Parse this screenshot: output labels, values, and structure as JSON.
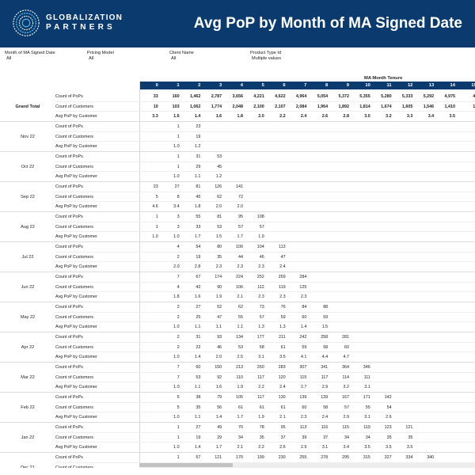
{
  "header": {
    "logo_line1": "GLOBALIZATION",
    "logo_line2": "PARTNERS",
    "title": "Avg PoP by Month of MA Signed Date"
  },
  "filters": [
    {
      "label": "Month of MA Signed Date",
      "value": "All"
    },
    {
      "label": "Pricing Model",
      "value": "All"
    },
    {
      "label": "Client Name",
      "value": "All"
    },
    {
      "label": "Product Type Id",
      "value": "Multiple values"
    }
  ],
  "table": {
    "column_group_label": "MA Month Tenure",
    "columns": [
      "0",
      "1",
      "2",
      "3",
      "4",
      "5",
      "6",
      "7",
      "8",
      "9",
      "10",
      "11",
      "12",
      "13",
      "14",
      "15"
    ],
    "metric_labels": [
      "Count of PoPs",
      "Count of Customers",
      "Avg PoP by Customer"
    ],
    "groups": [
      {
        "label": "Grand Total",
        "grand": true,
        "rows": [
          [
            "33",
            "160",
            "1,462",
            "2,787",
            "3,656",
            "4,221",
            "4,622",
            "4,964",
            "5,054",
            "5,372",
            "5,355",
            "5,280",
            "5,333",
            "5,292",
            "4,975",
            "4,"
          ],
          [
            "10",
            "103",
            "1,062",
            "1,774",
            "2,048",
            "2,100",
            "2,107",
            "2,084",
            "1,964",
            "1,892",
            "1,814",
            "1,674",
            "1,605",
            "1,546",
            "1,410",
            "1,"
          ],
          [
            "3.3",
            "1.6",
            "1.4",
            "1.6",
            "1.8",
            "2.0",
            "2.2",
            "2.4",
            "2.6",
            "2.8",
            "3.0",
            "3.2",
            "3.3",
            "3.4",
            "3.5",
            ""
          ]
        ]
      },
      {
        "label": "Nov 22",
        "rows": [
          [
            "",
            "1",
            "23",
            "",
            "",
            "",
            "",
            "",
            "",
            "",
            "",
            "",
            "",
            "",
            "",
            ""
          ],
          [
            "",
            "1",
            "19",
            "",
            "",
            "",
            "",
            "",
            "",
            "",
            "",
            "",
            "",
            "",
            "",
            ""
          ],
          [
            "",
            "1.0",
            "1.2",
            "",
            "",
            "",
            "",
            "",
            "",
            "",
            "",
            "",
            "",
            "",
            "",
            ""
          ]
        ]
      },
      {
        "label": "Oct 22",
        "rows": [
          [
            "",
            "1",
            "31",
            "53",
            "",
            "",
            "",
            "",
            "",
            "",
            "",
            "",
            "",
            "",
            "",
            ""
          ],
          [
            "",
            "1",
            "29",
            "45",
            "",
            "",
            "",
            "",
            "",
            "",
            "",
            "",
            "",
            "",
            "",
            ""
          ],
          [
            "",
            "1.0",
            "1.1",
            "1.2",
            "",
            "",
            "",
            "",
            "",
            "",
            "",
            "",
            "",
            "",
            "",
            ""
          ]
        ]
      },
      {
        "label": "Sep 22",
        "rows": [
          [
            "23",
            "27",
            "81",
            "126",
            "141",
            "",
            "",
            "",
            "",
            "",
            "",
            "",
            "",
            "",
            "",
            ""
          ],
          [
            "5",
            "8",
            "45",
            "62",
            "72",
            "",
            "",
            "",
            "",
            "",
            "",
            "",
            "",
            "",
            "",
            ""
          ],
          [
            "4.6",
            "3.4",
            "1.8",
            "2.0",
            "2.0",
            "",
            "",
            "",
            "",
            "",
            "",
            "",
            "",
            "",
            "",
            ""
          ]
        ]
      },
      {
        "label": "Aug 22",
        "rows": [
          [
            "1",
            "3",
            "55",
            "81",
            "95",
            "108",
            "",
            "",
            "",
            "",
            "",
            "",
            "",
            "",
            "",
            ""
          ],
          [
            "1",
            "3",
            "33",
            "53",
            "57",
            "57",
            "",
            "",
            "",
            "",
            "",
            "",
            "",
            "",
            "",
            ""
          ],
          [
            "1.0",
            "1.0",
            "1.7",
            "1.5",
            "1.7",
            "1.9",
            "",
            "",
            "",
            "",
            "",
            "",
            "",
            "",
            "",
            ""
          ]
        ]
      },
      {
        "label": "Jul 22",
        "rows": [
          [
            "",
            "4",
            "54",
            "80",
            "100",
            "104",
            "113",
            "",
            "",
            "",
            "",
            "",
            "",
            "",
            "",
            ""
          ],
          [
            "",
            "2",
            "19",
            "35",
            "44",
            "46",
            "47",
            "",
            "",
            "",
            "",
            "",
            "",
            "",
            "",
            ""
          ],
          [
            "",
            "2.0",
            "2.8",
            "2.3",
            "2.3",
            "2.3",
            "2.4",
            "",
            "",
            "",
            "",
            "",
            "",
            "",
            "",
            ""
          ]
        ]
      },
      {
        "label": "Jun 22",
        "rows": [
          [
            "",
            "7",
            "67",
            "174",
            "224",
            "252",
            "269",
            "284",
            "",
            "",
            "",
            "",
            "",
            "",
            "",
            ""
          ],
          [
            "",
            "4",
            "42",
            "90",
            "106",
            "112",
            "119",
            "125",
            "",
            "",
            "",
            "",
            "",
            "",
            "",
            ""
          ],
          [
            "",
            "1.8",
            "1.6",
            "1.9",
            "2.1",
            "2.3",
            "2.3",
            "2.3",
            "",
            "",
            "",
            "",
            "",
            "",
            "",
            ""
          ]
        ]
      },
      {
        "label": "May 22",
        "rows": [
          [
            "",
            "2",
            "27",
            "52",
            "62",
            "73",
            "76",
            "84",
            "88",
            "",
            "",
            "",
            "",
            "",
            "",
            ""
          ],
          [
            "",
            "2",
            "25",
            "47",
            "55",
            "57",
            "59",
            "60",
            "59",
            "",
            "",
            "",
            "",
            "",
            "",
            ""
          ],
          [
            "",
            "1.0",
            "1.1",
            "1.1",
            "1.1",
            "1.3",
            "1.3",
            "1.4",
            "1.5",
            "",
            "",
            "",
            "",
            "",
            "",
            ""
          ]
        ]
      },
      {
        "label": "Apr 22",
        "rows": [
          [
            "",
            "2",
            "31",
            "93",
            "134",
            "177",
            "211",
            "242",
            "258",
            "281",
            "",
            "",
            "",
            "",
            "",
            ""
          ],
          [
            "",
            "2",
            "22",
            "46",
            "53",
            "58",
            "61",
            "59",
            "58",
            "60",
            "",
            "",
            "",
            "",
            "",
            ""
          ],
          [
            "",
            "1.0",
            "1.4",
            "2.0",
            "2.5",
            "3.1",
            "3.5",
            "4.1",
            "4.4",
            "4.7",
            "",
            "",
            "",
            "",
            "",
            ""
          ]
        ]
      },
      {
        "label": "Mar 22",
        "rows": [
          [
            "",
            "7",
            "60",
            "150",
            "213",
            "260",
            "283",
            "307",
            "341",
            "364",
            "346",
            "",
            "",
            "",
            "",
            ""
          ],
          [
            "",
            "7",
            "53",
            "92",
            "110",
            "117",
            "120",
            "115",
            "117",
            "114",
            "111",
            "",
            "",
            "",
            "",
            ""
          ],
          [
            "",
            "1.0",
            "1.1",
            "1.6",
            "1.9",
            "2.2",
            "2.4",
            "2.7",
            "2.9",
            "3.2",
            "3.1",
            "",
            "",
            "",
            "",
            ""
          ]
        ]
      },
      {
        "label": "Feb 22",
        "rows": [
          [
            "",
            "5",
            "38",
            "79",
            "105",
            "117",
            "130",
            "139",
            "139",
            "167",
            "171",
            "142",
            "",
            "",
            "",
            ""
          ],
          [
            "",
            "5",
            "35",
            "56",
            "61",
            "61",
            "61",
            "60",
            "58",
            "57",
            "55",
            "54",
            "",
            "",
            "",
            ""
          ],
          [
            "",
            "1.0",
            "1.1",
            "1.4",
            "1.7",
            "1.9",
            "2.1",
            "2.3",
            "2.4",
            "2.9",
            "3.1",
            "2.6",
            "",
            "",
            "",
            ""
          ]
        ]
      },
      {
        "label": "Jan 22",
        "rows": [
          [
            "",
            "1",
            "27",
            "49",
            "70",
            "78",
            "95",
            "113",
            "116",
            "115",
            "119",
            "123",
            "121",
            "",
            "",
            ""
          ],
          [
            "",
            "1",
            "19",
            "29",
            "34",
            "35",
            "37",
            "39",
            "37",
            "34",
            "34",
            "35",
            "35",
            "",
            "",
            ""
          ],
          [
            "",
            "1.0",
            "1.4",
            "1.7",
            "2.1",
            "2.2",
            "2.6",
            "2.9",
            "3.1",
            "3.4",
            "3.5",
            "3.5",
            "3.5",
            "",
            "",
            ""
          ]
        ]
      },
      {
        "label": "Dec 21",
        "rows": [
          [
            "",
            "1",
            "57",
            "121",
            "170",
            "199",
            "230",
            "255",
            "278",
            "295",
            "315",
            "327",
            "334",
            "340",
            "",
            ""
          ],
          [
            "",
            "",
            "",
            "",
            "",
            "",
            "",
            "",
            "",
            "",
            "",
            "",
            "",
            "",
            "",
            ""
          ],
          [
            "",
            "",
            "",
            "",
            "",
            "",
            "",
            "",
            "",
            "",
            "",
            "",
            "",
            "",
            "",
            ""
          ]
        ]
      }
    ]
  }
}
